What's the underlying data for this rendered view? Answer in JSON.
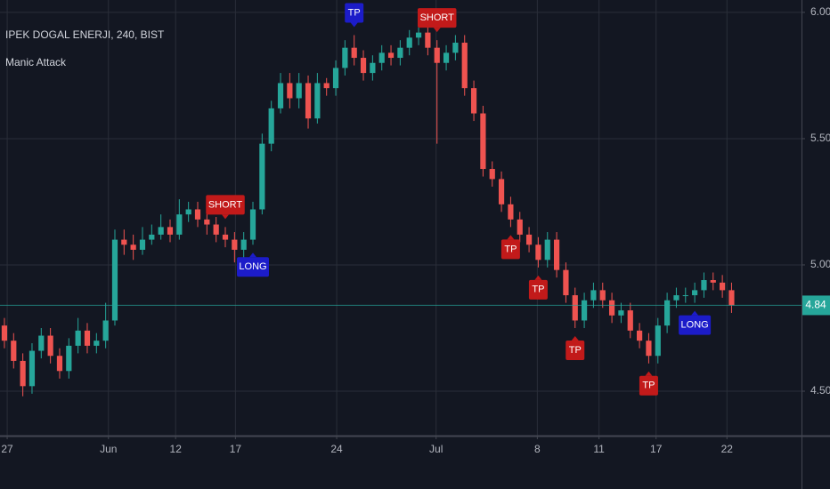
{
  "chart_data": {
    "type": "candlestick",
    "title": "IPEK DOGAL ENERJI, 240, BIST",
    "subtitle": "Manic Attack",
    "up_color": "#26a69a",
    "down_color": "#ef5350",
    "open": [
      4.76,
      4.7,
      4.62,
      4.52,
      4.66,
      4.72,
      4.64,
      4.58,
      4.68,
      4.74,
      4.68,
      4.7,
      4.78,
      5.1,
      5.08,
      5.06,
      5.1,
      5.12,
      5.15,
      5.12,
      5.2,
      5.22,
      5.18,
      5.16,
      5.12,
      5.1,
      5.06,
      5.1,
      5.22,
      5.48,
      5.62,
      5.72,
      5.66,
      5.72,
      5.58,
      5.72,
      5.7,
      5.78,
      5.86,
      5.82,
      5.76,
      5.8,
      5.84,
      5.82,
      5.86,
      5.9,
      5.92,
      5.86,
      5.8,
      5.84,
      5.88,
      5.7,
      5.6,
      5.38,
      5.34,
      5.24,
      5.18,
      5.12,
      5.08,
      5.02,
      5.1,
      4.98,
      4.88,
      4.78,
      4.86,
      4.9,
      4.86,
      4.8,
      4.82,
      4.74,
      4.7,
      4.64,
      4.76,
      4.86,
      4.88,
      4.88,
      4.9,
      4.94,
      4.93,
      4.9
    ],
    "high": [
      4.79,
      4.73,
      4.65,
      4.69,
      4.75,
      4.75,
      4.67,
      4.71,
      4.79,
      4.77,
      4.73,
      4.85,
      5.14,
      5.14,
      5.12,
      5.15,
      5.16,
      5.2,
      5.18,
      5.26,
      5.25,
      5.25,
      5.21,
      5.19,
      5.15,
      5.13,
      5.13,
      5.25,
      5.52,
      5.65,
      5.76,
      5.76,
      5.76,
      5.75,
      5.76,
      5.74,
      5.81,
      5.89,
      5.91,
      5.85,
      5.83,
      5.87,
      5.87,
      5.89,
      5.93,
      5.95,
      5.95,
      5.89,
      5.87,
      5.91,
      5.91,
      5.73,
      5.63,
      5.41,
      5.37,
      5.27,
      5.21,
      5.15,
      5.11,
      5.13,
      5.13,
      5.01,
      4.91,
      4.89,
      4.93,
      4.93,
      4.89,
      4.85,
      4.85,
      4.77,
      4.73,
      4.79,
      4.89,
      4.91,
      4.91,
      4.93,
      4.97,
      4.97,
      4.96,
      4.93
    ],
    "low": [
      4.67,
      4.59,
      4.48,
      4.49,
      4.63,
      4.61,
      4.55,
      4.55,
      4.65,
      4.65,
      4.65,
      4.67,
      4.76,
      5.04,
      5.02,
      5.04,
      5.08,
      5.1,
      5.09,
      5.1,
      5.17,
      5.15,
      5.12,
      5.09,
      5.07,
      5.01,
      5.03,
      5.08,
      5.2,
      5.45,
      5.6,
      5.62,
      5.62,
      5.54,
      5.56,
      5.67,
      5.67,
      5.75,
      5.79,
      5.73,
      5.73,
      5.77,
      5.79,
      5.79,
      5.83,
      5.87,
      5.83,
      5.48,
      5.77,
      5.81,
      5.67,
      5.57,
      5.35,
      5.31,
      5.21,
      5.15,
      5.09,
      5.05,
      4.99,
      4.99,
      4.95,
      4.85,
      4.75,
      4.75,
      4.83,
      4.83,
      4.77,
      4.77,
      4.71,
      4.67,
      4.61,
      4.61,
      4.73,
      4.83,
      4.85,
      4.85,
      4.87,
      4.9,
      4.87,
      4.81
    ],
    "close": [
      4.7,
      4.62,
      4.52,
      4.66,
      4.72,
      4.64,
      4.58,
      4.68,
      4.74,
      4.68,
      4.7,
      4.78,
      5.1,
      5.08,
      5.06,
      5.1,
      5.12,
      5.15,
      5.12,
      5.2,
      5.22,
      5.18,
      5.16,
      5.12,
      5.1,
      5.06,
      5.1,
      5.22,
      5.48,
      5.62,
      5.72,
      5.66,
      5.72,
      5.58,
      5.72,
      5.7,
      5.78,
      5.86,
      5.82,
      5.76,
      5.8,
      5.84,
      5.82,
      5.86,
      5.9,
      5.92,
      5.86,
      5.8,
      5.84,
      5.88,
      5.7,
      5.6,
      5.38,
      5.34,
      5.24,
      5.18,
      5.12,
      5.08,
      5.02,
      5.1,
      4.98,
      4.88,
      4.78,
      4.86,
      4.9,
      4.86,
      4.8,
      4.82,
      4.74,
      4.7,
      4.64,
      4.76,
      4.86,
      4.88,
      4.88,
      4.9,
      4.94,
      4.93,
      4.9,
      4.84
    ],
    "last_price": 4.84,
    "xlim": [
      -0.48,
      86.6
    ],
    "xticks": [
      {
        "value": 0.3,
        "label": "27"
      },
      {
        "value": 11.3,
        "label": "Jun"
      },
      {
        "value": 18.6,
        "label": "12"
      },
      {
        "value": 25.1,
        "label": "17"
      },
      {
        "value": 36.1,
        "label": "24"
      },
      {
        "value": 46.9,
        "label": "Jul"
      },
      {
        "value": 57.9,
        "label": "8"
      },
      {
        "value": 64.6,
        "label": "11"
      },
      {
        "value": 70.8,
        "label": "17"
      },
      {
        "value": 78.5,
        "label": "22"
      }
    ],
    "ylim": [
      4.324,
      6.049
    ],
    "yticks": [
      {
        "value": 4.5,
        "label": "4.50"
      },
      {
        "value": 5,
        "label": "5.00"
      },
      {
        "value": 5.5,
        "label": "5.50"
      },
      {
        "value": 6,
        "label": "6.00"
      }
    ],
    "grid": true,
    "signals": [
      {
        "label": "SHORT",
        "bar": 24,
        "position": "above",
        "color": "#c21a1a"
      },
      {
        "label": "LONG",
        "bar": 27,
        "position": "below",
        "color": "#1c1cc9"
      },
      {
        "label": "TP",
        "bar": 38,
        "position": "above",
        "color": "#1c1cc9"
      },
      {
        "label": "SHORT",
        "bar": 47,
        "position": "above",
        "color": "#c21a1a"
      },
      {
        "label": "TP",
        "bar": 55,
        "position": "below",
        "color": "#c21a1a"
      },
      {
        "label": "TP",
        "bar": 58,
        "position": "below",
        "color": "#c21a1a"
      },
      {
        "label": "TP",
        "bar": 62,
        "position": "below",
        "color": "#c21a1a"
      },
      {
        "label": "TP",
        "bar": 70,
        "position": "below",
        "color": "#c21a1a"
      },
      {
        "label": "LONG",
        "bar": 75,
        "position": "below",
        "color": "#1c1cc9"
      }
    ]
  }
}
